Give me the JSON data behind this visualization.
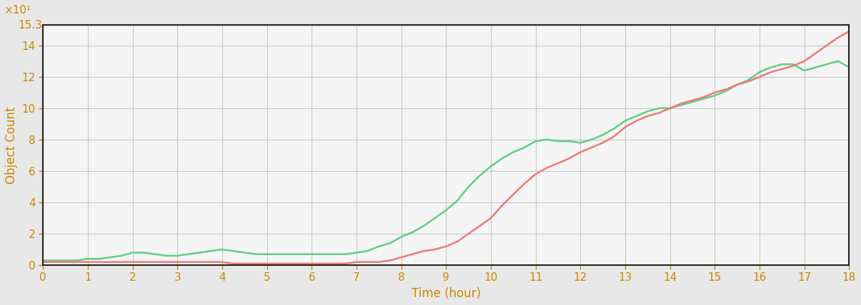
{
  "xlabel": "Time (hour)",
  "ylabel": "Object Count",
  "xlim": [
    0,
    18
  ],
  "ylim": [
    0,
    153
  ],
  "xticks": [
    0,
    1,
    2,
    3,
    4,
    5,
    6,
    7,
    8,
    9,
    10,
    11,
    12,
    13,
    14,
    15,
    16,
    17,
    18
  ],
  "yticks": [
    0,
    20,
    40,
    60,
    80,
    100,
    120,
    140
  ],
  "ytick_labels": [
    "0",
    "2",
    "4",
    "6",
    "8",
    "10",
    "12",
    "14"
  ],
  "ytop_label": "15.3",
  "scale_label": "×10¹",
  "background_color": "#e8e8e8",
  "plot_bg_color": "#f5f5f5",
  "grid_color": "#c8c8c8",
  "label_color": "#cc8800",
  "tick_color": "#cc8800",
  "spine_color": "#222222",
  "line_color_green": "#5ecf85",
  "line_color_red": "#f07878",
  "line_width": 1.8,
  "green_x": [
    0,
    0.25,
    0.5,
    0.75,
    1,
    1.25,
    1.5,
    1.75,
    2,
    2.25,
    2.5,
    2.75,
    3,
    3.25,
    3.5,
    3.75,
    4,
    4.25,
    4.5,
    4.75,
    5,
    5.25,
    5.5,
    5.75,
    6,
    6.25,
    6.5,
    6.75,
    7,
    7.25,
    7.5,
    7.75,
    8,
    8.25,
    8.5,
    8.75,
    9,
    9.25,
    9.5,
    9.75,
    10,
    10.25,
    10.5,
    10.75,
    11,
    11.25,
    11.5,
    11.75,
    12,
    12.25,
    12.5,
    12.75,
    13,
    13.25,
    13.5,
    13.75,
    14,
    14.25,
    14.5,
    14.75,
    15,
    15.25,
    15.5,
    15.75,
    16,
    16.25,
    16.5,
    16.75,
    17,
    17.25,
    17.5,
    17.75,
    18
  ],
  "green_y": [
    3,
    3,
    3,
    3,
    4,
    4,
    5,
    6,
    8,
    8,
    7,
    6,
    6,
    7,
    8,
    9,
    10,
    9,
    8,
    7,
    7,
    7,
    7,
    7,
    7,
    7,
    7,
    7,
    8,
    9,
    12,
    14,
    18,
    21,
    25,
    30,
    35,
    41,
    50,
    57,
    63,
    68,
    72,
    75,
    79,
    80,
    79,
    79,
    78,
    80,
    83,
    87,
    92,
    95,
    98,
    100,
    100,
    102,
    104,
    106,
    108,
    111,
    115,
    118,
    123,
    126,
    128,
    128,
    124,
    126,
    128,
    130,
    126
  ],
  "red_x": [
    0,
    0.25,
    0.5,
    0.75,
    1,
    1.25,
    1.5,
    1.75,
    2,
    2.25,
    2.5,
    2.75,
    3,
    3.25,
    3.5,
    3.75,
    4,
    4.25,
    4.5,
    4.75,
    5,
    5.25,
    5.5,
    5.75,
    6,
    6.25,
    6.5,
    6.75,
    7,
    7.25,
    7.5,
    7.75,
    8,
    8.25,
    8.5,
    8.75,
    9,
    9.25,
    9.5,
    9.75,
    10,
    10.25,
    10.5,
    10.75,
    11,
    11.25,
    11.5,
    11.75,
    12,
    12.25,
    12.5,
    12.75,
    13,
    13.25,
    13.5,
    13.75,
    14,
    14.25,
    14.5,
    14.75,
    15,
    15.25,
    15.5,
    15.75,
    16,
    16.25,
    16.5,
    16.75,
    17,
    17.25,
    17.5,
    17.75,
    18
  ],
  "red_y": [
    2,
    2,
    2,
    2,
    2,
    2,
    2,
    2,
    2,
    2,
    2,
    2,
    2,
    2,
    2,
    2,
    2,
    1,
    1,
    1,
    1,
    1,
    1,
    1,
    1,
    1,
    1,
    1,
    2,
    2,
    2,
    3,
    5,
    7,
    9,
    10,
    12,
    15,
    20,
    25,
    30,
    38,
    45,
    52,
    58,
    62,
    65,
    68,
    72,
    75,
    78,
    82,
    88,
    92,
    95,
    97,
    100,
    103,
    105,
    107,
    110,
    112,
    115,
    117,
    120,
    123,
    125,
    127,
    130,
    135,
    140,
    145,
    149
  ]
}
